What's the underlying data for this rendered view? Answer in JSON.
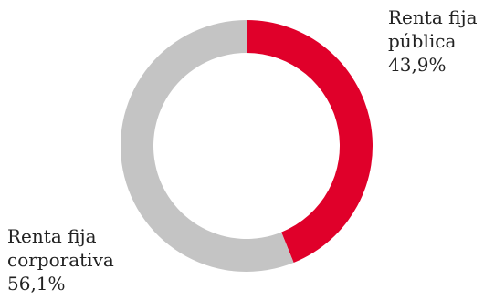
{
  "chart_data": {
    "type": "pie",
    "donut": true,
    "title": "",
    "slices": [
      {
        "name": "Renta fija pública",
        "label_lines": [
          "Renta fija",
          "pública"
        ],
        "value": 43.9,
        "value_label": "43,9%",
        "color": "#e0002a"
      },
      {
        "name": "Renta fija corporativa",
        "label_lines": [
          "Renta fija",
          "corporativa"
        ],
        "value": 56.1,
        "value_label": "56,1%",
        "color": "#c4c4c4"
      }
    ],
    "start": "top",
    "direction": "clockwise",
    "legend": "none"
  }
}
